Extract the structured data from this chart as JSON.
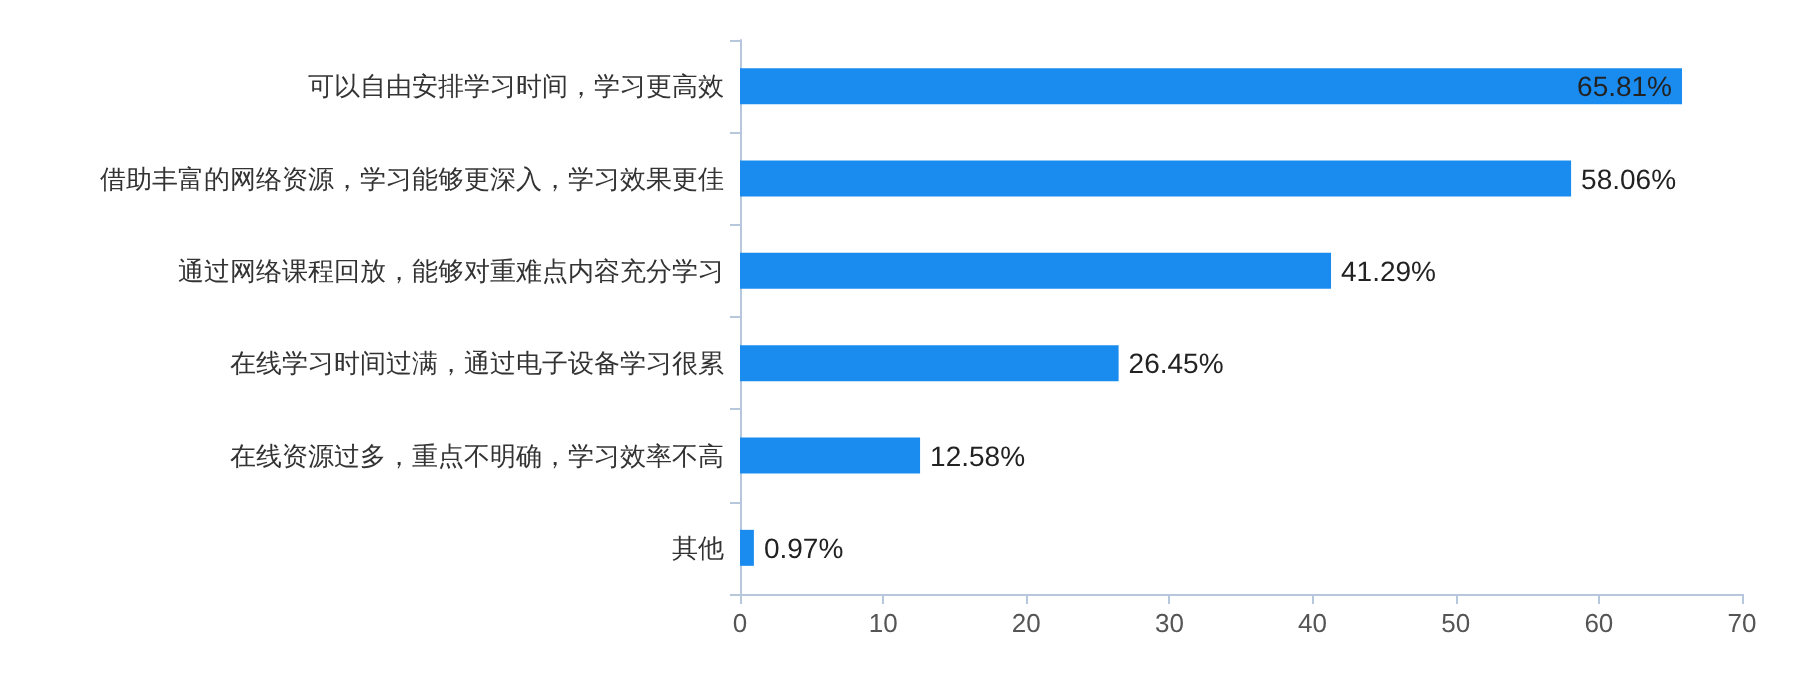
{
  "chart_data": {
    "type": "bar",
    "orientation": "horizontal",
    "categories": [
      "可以自由安排学习时间，学习更高效",
      "借助丰富的网络资源，学习能够更深入，学习效果更佳",
      "通过网络课程回放，能够对重难点内容充分学习",
      "在线学习时间过满，通过电子设备学习很累",
      "在线资源过多，重点不明确，学习效率不高",
      "其他"
    ],
    "values": [
      65.81,
      58.06,
      41.29,
      26.45,
      12.58,
      0.97
    ],
    "value_labels": [
      "65.81%",
      "58.06%",
      "41.29%",
      "26.45%",
      "12.58%",
      "0.97%"
    ],
    "color": "#1a8cf0",
    "xlim": [
      0,
      70
    ],
    "xticks": [
      0,
      10,
      20,
      30,
      40,
      50,
      60,
      70
    ],
    "grid": false
  }
}
